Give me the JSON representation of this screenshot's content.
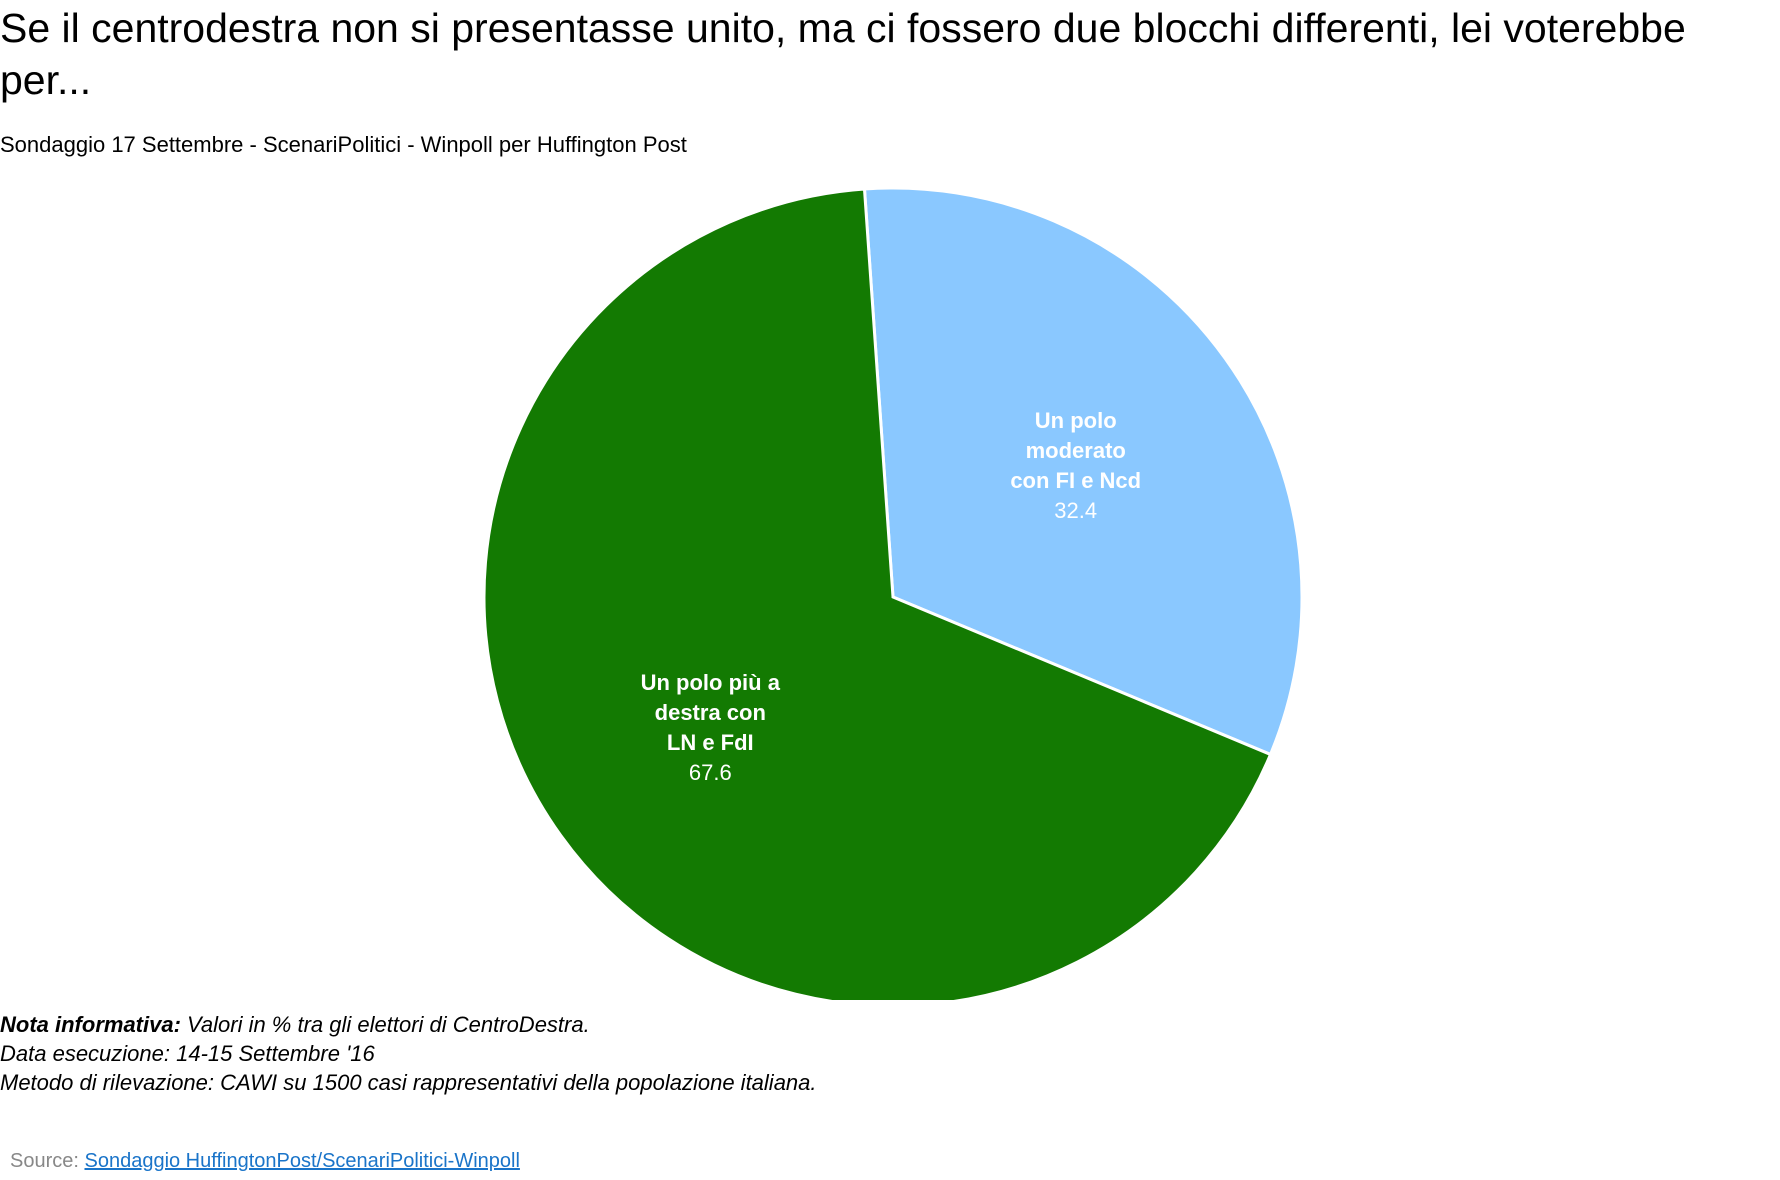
{
  "title": "Se il centrodestra non si presentasse unito, ma ci fossero due blocchi differenti, lei voterebbe per...",
  "subtitle": "Sondaggio 17 Settembre - ScenariPolitici - Winpoll per Huffington Post",
  "chart_data": {
    "type": "pie",
    "title": "Se il centrodestra non si presentasse unito, ma ci fossero due blocchi differenti, lei voterebbe per...",
    "subtitle": "Sondaggio 17 Settembre - ScenariPolitici - Winpoll per Huffington Post",
    "slices": [
      {
        "label": "Un polo moderato con FI e Ncd",
        "label_lines": [
          "Un polo",
          "moderato",
          "con FI e Ncd"
        ],
        "value": 32.4,
        "value_text": "32.4",
        "color": "#8ac8ff"
      },
      {
        "label": "Un polo più a destra con LN e FdI",
        "label_lines": [
          "Un polo più a",
          "destra con",
          "LN e FdI"
        ],
        "value": 67.6,
        "value_text": "67.6",
        "color": "#137a02"
      }
    ],
    "legend": "none",
    "data_labels": "inside"
  },
  "notes": {
    "nota_label": "Nota informativa:",
    "nota_text": " Valori in % tra gli elettori di CentroDestra.",
    "data_esecuzione": "Data esecuzione: 14-15 Settembre '16",
    "metodo": "Metodo di rilevazione: CAWI su 1500 casi rappresentativi della popolazione italiana."
  },
  "source": {
    "prefix": "Source: ",
    "link_text": "Sondaggio HuffingtonPost/ScenariPolitici-Winpoll"
  }
}
